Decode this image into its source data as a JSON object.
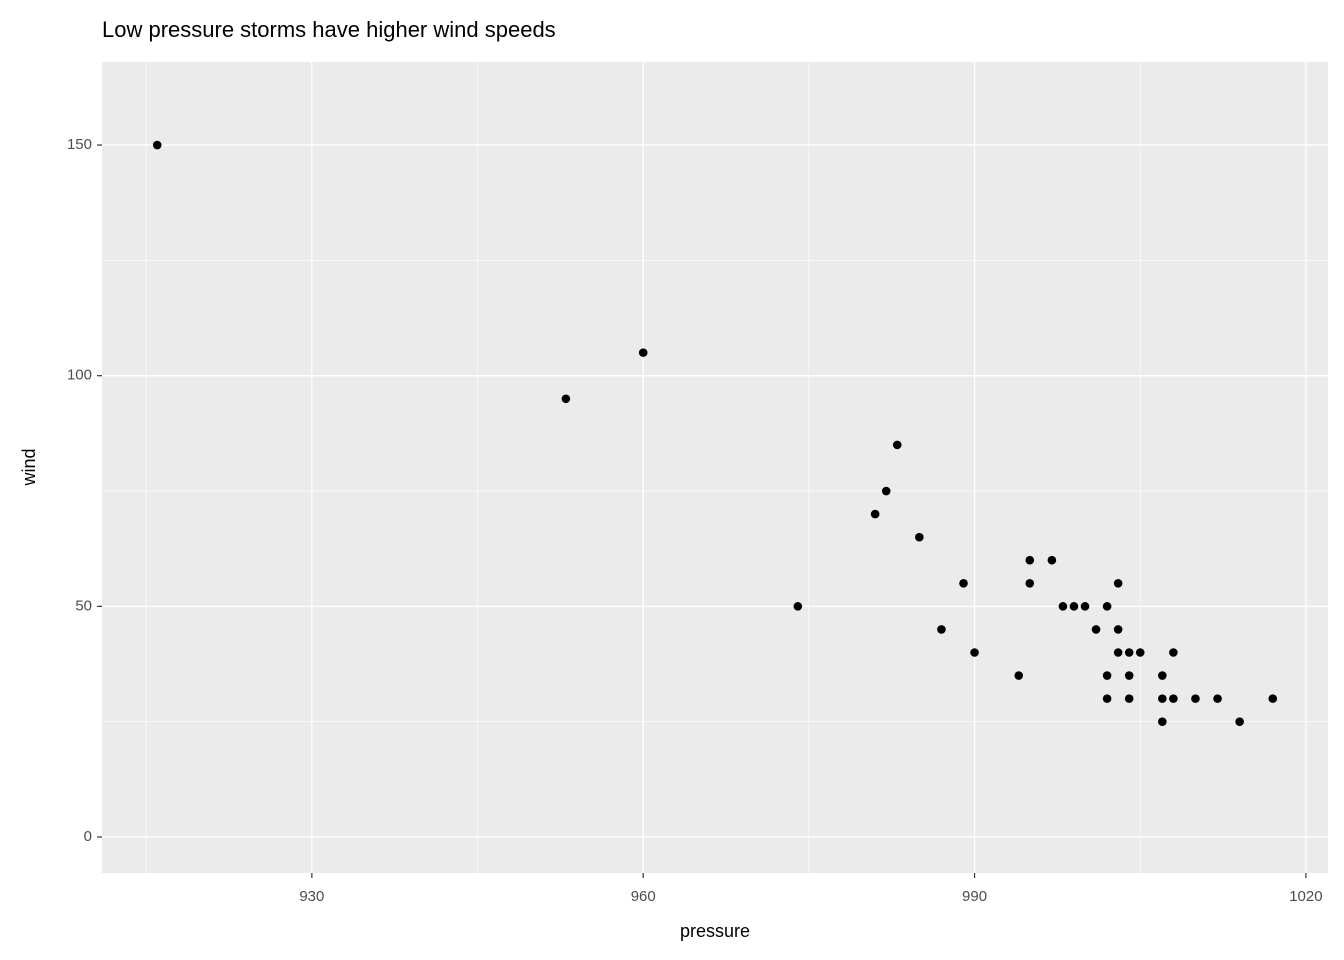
{
  "chart_data": {
    "type": "scatter",
    "title": "Low pressure storms have higher wind speeds",
    "x_label": "pressure",
    "y_label": "wind",
    "x": [
      916,
      953,
      960,
      974,
      981,
      982,
      983,
      985,
      987,
      989,
      990,
      994,
      995,
      995,
      997,
      998,
      999,
      1000,
      1001,
      1002,
      1002,
      1002,
      1003,
      1003,
      1003,
      1004,
      1004,
      1004,
      1005,
      1007,
      1007,
      1007,
      1008,
      1008,
      1010,
      1012,
      1014,
      1017
    ],
    "y": [
      150,
      95,
      105,
      50,
      70,
      75,
      85,
      65,
      45,
      55,
      40,
      35,
      60,
      55,
      60,
      50,
      50,
      50,
      45,
      50,
      35,
      30,
      55,
      45,
      40,
      40,
      35,
      30,
      40,
      35,
      30,
      25,
      40,
      30,
      30,
      30,
      25,
      30
    ],
    "color": "#000000",
    "xlim": [
      911,
      1022
    ],
    "ylim": [
      -7.8,
      168
    ],
    "xticks": [
      930,
      960,
      990,
      1020
    ],
    "yticks": [
      0,
      50,
      100,
      150
    ],
    "grid": true,
    "minor_grid": true
  }
}
